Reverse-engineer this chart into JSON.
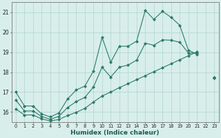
{
  "xlabel": "Humidex (Indice chaleur)",
  "bg_color": "#d8eeea",
  "grid_color": "#b0d4ce",
  "line_color": "#2a7a6a",
  "xlim": [
    -0.5,
    23.5
  ],
  "ylim": [
    15.5,
    21.5
  ],
  "yticks": [
    16,
    17,
    18,
    19,
    20,
    21
  ],
  "xticks": [
    0,
    1,
    2,
    3,
    4,
    5,
    6,
    7,
    8,
    9,
    10,
    11,
    12,
    13,
    14,
    15,
    16,
    17,
    18,
    19,
    20,
    21,
    22,
    23
  ],
  "line_top": [
    17.0,
    16.3,
    16.3,
    15.9,
    15.75,
    15.95,
    16.65,
    17.1,
    17.3,
    18.05,
    19.75,
    18.5,
    19.3,
    19.3,
    19.55,
    21.1,
    20.65,
    21.05,
    20.75,
    20.35,
    19.1,
    18.9,
    null,
    17.7
  ],
  "line_bot": [
    16.15,
    15.85,
    15.85,
    15.65,
    15.55,
    15.62,
    15.82,
    15.98,
    16.18,
    16.5,
    16.8,
    17.0,
    17.22,
    17.42,
    17.62,
    17.82,
    18.02,
    18.22,
    18.42,
    18.62,
    18.82,
    19.02,
    null,
    17.73
  ],
  "line_mid": [
    16.6,
    16.05,
    16.05,
    15.77,
    15.63,
    15.78,
    16.22,
    16.52,
    16.73,
    17.25,
    18.25,
    17.75,
    18.25,
    18.35,
    18.6,
    19.45,
    19.35,
    19.62,
    19.6,
    19.5,
    18.96,
    18.95,
    null,
    17.72
  ]
}
